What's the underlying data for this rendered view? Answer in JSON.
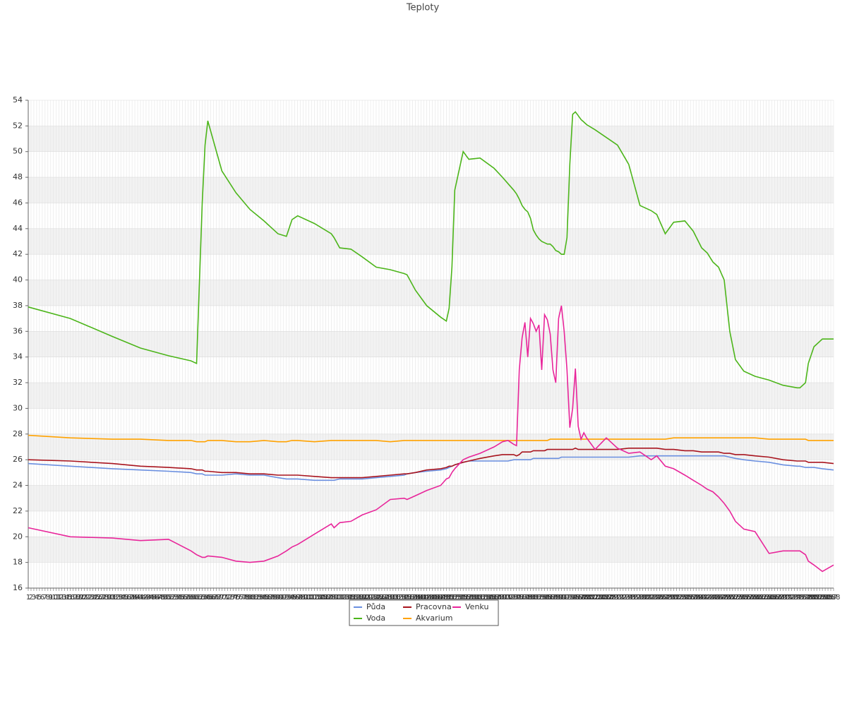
{
  "chart_data": {
    "type": "line",
    "title": "Teploty",
    "x": [
      1,
      16,
      31,
      41,
      51,
      59,
      61,
      63,
      64,
      65,
      70,
      75,
      80,
      85,
      90,
      93,
      95,
      97,
      103,
      109,
      110,
      112,
      116,
      120,
      125,
      130,
      135,
      136,
      139,
      143,
      148,
      150,
      151,
      152,
      153,
      156,
      158,
      162,
      167,
      170,
      172,
      174,
      175,
      176,
      177,
      178,
      179,
      180,
      181,
      182,
      183,
      184,
      185,
      186,
      187,
      188,
      189,
      190,
      191,
      192,
      193,
      194,
      195,
      196,
      197,
      198,
      199,
      200,
      203,
      207,
      211,
      215,
      219,
      223,
      225,
      228,
      231,
      235,
      238,
      241,
      243,
      245,
      247,
      249,
      251,
      253,
      256,
      260,
      265,
      270,
      275,
      276,
      278,
      279,
      281,
      284,
      288
    ],
    "series": [
      {
        "name": "Půda",
        "color": "#6a8fe0",
        "values": [
          25.7,
          25.5,
          25.3,
          25.2,
          25.1,
          25.0,
          24.9,
          24.9,
          24.8,
          24.8,
          24.8,
          24.9,
          24.8,
          24.8,
          24.6,
          24.5,
          24.5,
          24.5,
          24.4,
          24.4,
          24.4,
          24.5,
          24.5,
          24.5,
          24.6,
          24.7,
          24.8,
          24.9,
          25.0,
          25.1,
          25.2,
          25.3,
          25.4,
          25.5,
          25.6,
          25.8,
          25.9,
          25.9,
          25.9,
          25.9,
          25.9,
          26.0,
          26.0,
          26.0,
          26.0,
          26.0,
          26.0,
          26.0,
          26.1,
          26.1,
          26.1,
          26.1,
          26.1,
          26.1,
          26.1,
          26.1,
          26.1,
          26.1,
          26.2,
          26.2,
          26.2,
          26.2,
          26.2,
          26.2,
          26.2,
          26.2,
          26.2,
          26.2,
          26.2,
          26.2,
          26.2,
          26.2,
          26.3,
          26.3,
          26.3,
          26.3,
          26.3,
          26.3,
          26.3,
          26.3,
          26.3,
          26.3,
          26.3,
          26.3,
          26.2,
          26.1,
          26.0,
          25.9,
          25.8,
          25.6,
          25.5,
          25.5,
          25.4,
          25.4,
          25.4,
          25.3,
          25.2
        ]
      },
      {
        "name": "Voda",
        "color": "#4cb51a",
        "values": [
          37.9,
          37.0,
          35.6,
          34.7,
          34.1,
          33.7,
          33.5,
          46,
          50.5,
          52.4,
          48.5,
          46.8,
          45.5,
          44.6,
          43.6,
          43.4,
          44.7,
          45.0,
          44.4,
          43.6,
          43.3,
          42.5,
          42.4,
          41.8,
          41.0,
          40.8,
          40.5,
          40.4,
          39.2,
          38.0,
          37.1,
          36.8,
          37.8,
          41,
          47,
          50.0,
          49.4,
          49.5,
          48.7,
          48.0,
          47.5,
          47.0,
          46.7,
          46.3,
          45.8,
          45.5,
          45.3,
          44.8,
          43.9,
          43.5,
          43.2,
          43.0,
          42.9,
          42.8,
          42.8,
          42.6,
          42.3,
          42.2,
          42.0,
          42.0,
          43.3,
          49,
          52.9,
          53.1,
          52.8,
          52.5,
          52.3,
          52.1,
          51.7,
          51.1,
          50.5,
          49.0,
          45.8,
          45.4,
          45.1,
          43.6,
          44.5,
          44.6,
          43.8,
          42.5,
          42.1,
          41.4,
          41.0,
          40.0,
          36.0,
          33.8,
          32.9,
          32.5,
          32.2,
          31.8,
          31.6,
          31.6,
          32.0,
          33.5,
          34.8,
          35.4,
          35.4
        ]
      },
      {
        "name": "Pracovna",
        "color": "#a8141e",
        "values": [
          26.0,
          25.9,
          25.7,
          25.5,
          25.4,
          25.3,
          25.2,
          25.2,
          25.1,
          25.1,
          25.0,
          25.0,
          24.9,
          24.9,
          24.8,
          24.8,
          24.8,
          24.8,
          24.7,
          24.6,
          24.6,
          24.6,
          24.6,
          24.6,
          24.7,
          24.8,
          24.9,
          24.9,
          25.0,
          25.2,
          25.3,
          25.4,
          25.5,
          25.5,
          25.6,
          25.8,
          25.9,
          26.1,
          26.3,
          26.4,
          26.4,
          26.4,
          26.3,
          26.4,
          26.6,
          26.6,
          26.6,
          26.6,
          26.7,
          26.7,
          26.7,
          26.7,
          26.7,
          26.8,
          26.8,
          26.8,
          26.8,
          26.8,
          26.8,
          26.8,
          26.8,
          26.8,
          26.8,
          26.9,
          26.8,
          26.8,
          26.8,
          26.8,
          26.8,
          26.8,
          26.8,
          26.9,
          26.9,
          26.9,
          26.9,
          26.8,
          26.8,
          26.7,
          26.7,
          26.6,
          26.6,
          26.6,
          26.6,
          26.5,
          26.5,
          26.4,
          26.4,
          26.3,
          26.2,
          26.0,
          25.9,
          25.9,
          25.9,
          25.8,
          25.8,
          25.8,
          25.7
        ]
      },
      {
        "name": "Akvarium",
        "color": "#ffa200",
        "values": [
          27.9,
          27.7,
          27.6,
          27.6,
          27.5,
          27.5,
          27.4,
          27.4,
          27.4,
          27.5,
          27.5,
          27.4,
          27.4,
          27.5,
          27.4,
          27.4,
          27.5,
          27.5,
          27.4,
          27.5,
          27.5,
          27.5,
          27.5,
          27.5,
          27.5,
          27.4,
          27.5,
          27.5,
          27.5,
          27.5,
          27.5,
          27.5,
          27.5,
          27.5,
          27.5,
          27.5,
          27.5,
          27.5,
          27.5,
          27.5,
          27.5,
          27.5,
          27.5,
          27.5,
          27.5,
          27.5,
          27.5,
          27.5,
          27.5,
          27.5,
          27.5,
          27.5,
          27.5,
          27.5,
          27.6,
          27.6,
          27.6,
          27.6,
          27.6,
          27.6,
          27.6,
          27.6,
          27.6,
          27.6,
          27.6,
          27.6,
          27.6,
          27.6,
          27.6,
          27.6,
          27.6,
          27.6,
          27.6,
          27.6,
          27.6,
          27.6,
          27.7,
          27.7,
          27.7,
          27.7,
          27.7,
          27.7,
          27.7,
          27.7,
          27.7,
          27.7,
          27.7,
          27.7,
          27.6,
          27.6,
          27.6,
          27.6,
          27.6,
          27.5,
          27.5,
          27.5,
          27.5
        ]
      },
      {
        "name": "Venku",
        "color": "#e8259a",
        "values": [
          20.7,
          20.0,
          19.9,
          19.7,
          19.8,
          18.9,
          18.6,
          18.4,
          18.4,
          18.5,
          18.4,
          18.1,
          18.0,
          18.1,
          18.5,
          18.9,
          19.2,
          19.4,
          20.2,
          21.0,
          20.7,
          21.1,
          21.2,
          21.7,
          22.1,
          22.9,
          23.0,
          22.9,
          23.2,
          23.6,
          24.0,
          24.5,
          24.6,
          25.0,
          25.3,
          26.0,
          26.2,
          26.5,
          27.0,
          27.4,
          27.5,
          27.2,
          27.1,
          33.0,
          35.5,
          36.7,
          34.0,
          37.0,
          36.6,
          36.0,
          36.5,
          33.0,
          37.3,
          36.9,
          35.8,
          33.0,
          32.0,
          37.0,
          38.0,
          36.0,
          33.0,
          28.5,
          30.0,
          33.1,
          28.6,
          27.6,
          28.1,
          27.7,
          26.8,
          27.7,
          26.9,
          26.5,
          26.6,
          26.0,
          26.3,
          25.5,
          25.3,
          24.8,
          24.4,
          24.0,
          23.7,
          23.5,
          23.1,
          22.6,
          22.0,
          21.2,
          20.6,
          20.4,
          18.7,
          18.9,
          18.9,
          18.9,
          18.6,
          18.1,
          17.8,
          17.3,
          17.8
        ]
      }
    ],
    "xlim": [
      1,
      288
    ],
    "xticks": [
      1,
      2,
      3,
      4,
      5,
      6,
      7,
      8,
      9,
      10,
      11,
      12,
      13,
      14,
      15,
      16,
      17,
      18,
      19,
      20,
      21,
      22,
      23,
      24,
      25,
      26,
      27,
      28,
      29,
      30,
      31,
      32,
      33,
      34,
      35,
      36,
      37,
      38,
      39,
      40,
      41,
      42,
      43,
      44,
      45,
      46,
      47,
      48,
      49,
      50,
      51,
      52,
      53,
      54,
      55,
      56,
      57,
      58,
      59,
      60,
      61,
      62,
      63,
      64,
      65,
      66,
      67,
      68,
      69,
      70,
      71,
      72,
      73,
      74,
      75,
      76,
      77,
      78,
      79,
      80,
      81,
      82,
      83,
      84,
      85,
      86,
      87,
      88,
      89,
      90,
      91,
      92,
      93,
      94,
      95,
      96,
      97,
      98,
      99,
      100,
      101,
      102,
      103,
      104,
      105,
      106,
      107,
      108,
      109,
      110,
      111,
      112,
      113,
      114,
      115,
      116,
      117,
      118,
      119,
      120,
      121,
      122,
      123,
      124,
      125,
      126,
      127,
      128,
      129,
      130,
      131,
      132,
      133,
      134,
      135,
      136,
      137,
      138,
      139,
      140,
      141,
      142,
      143,
      144,
      145,
      146,
      147,
      148,
      149,
      150,
      151,
      152,
      153,
      154,
      155,
      156,
      157,
      158,
      159,
      160,
      161,
      162,
      163,
      164,
      165,
      166,
      167,
      168,
      169,
      170,
      171,
      172,
      173,
      174,
      175,
      176,
      177,
      178,
      179,
      180,
      181,
      182,
      183,
      184,
      185,
      186,
      187,
      188,
      189,
      190,
      191,
      192,
      193,
      194,
      195,
      196,
      197,
      198,
      199,
      200,
      201,
      202,
      203,
      204,
      205,
      206,
      207,
      208,
      209,
      210,
      211,
      212,
      213,
      214,
      215,
      216,
      217,
      218,
      219,
      220,
      221,
      222,
      223,
      224,
      225,
      226,
      227,
      228,
      229,
      230,
      231,
      232,
      233,
      234,
      235,
      236,
      237,
      238,
      239,
      240,
      241,
      242,
      243,
      244,
      245,
      246,
      247,
      248,
      249,
      250,
      251,
      252,
      253,
      254,
      255,
      256,
      257,
      258,
      259,
      260,
      261,
      262,
      263,
      264,
      265,
      266,
      267,
      268,
      269,
      270,
      271,
      272,
      273,
      274,
      275,
      276,
      277,
      278,
      279,
      280,
      281,
      282,
      283,
      284,
      285,
      286,
      287,
      288
    ],
    "ylim": [
      16,
      54
    ],
    "yticks": [
      16,
      18,
      20,
      22,
      24,
      26,
      28,
      30,
      32,
      34,
      36,
      38,
      40,
      42,
      44,
      46,
      48,
      50,
      52,
      54
    ],
    "grid": true,
    "legend": "bottom"
  }
}
